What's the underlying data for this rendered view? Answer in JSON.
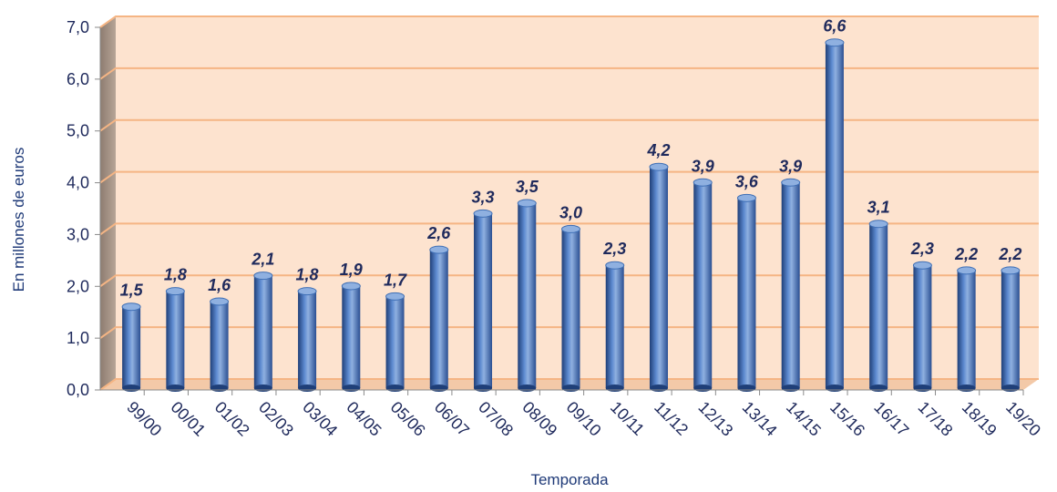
{
  "chart_data": {
    "type": "bar",
    "title": "",
    "xlabel": "Temporada",
    "ylabel": "En millones de euros",
    "ylim": [
      0,
      7
    ],
    "yticks": [
      "0,0",
      "1,0",
      "2,0",
      "3,0",
      "4,0",
      "5,0",
      "6,0",
      "7,0"
    ],
    "categories": [
      "99/00",
      "00/01",
      "01/02",
      "02/03",
      "03/04",
      "04/05",
      "05/06",
      "06/07",
      "07/08",
      "08/09",
      "09/10",
      "10/11",
      "11/12",
      "12/13",
      "13/14",
      "14/15",
      "15/16",
      "16/17",
      "17/18",
      "18/19",
      "19/20"
    ],
    "values": [
      1.5,
      1.8,
      1.6,
      2.1,
      1.8,
      1.9,
      1.7,
      2.6,
      3.3,
      3.5,
      3.0,
      2.3,
      4.2,
      3.9,
      3.6,
      3.9,
      6.6,
      3.1,
      2.3,
      2.2,
      2.2
    ],
    "value_labels": [
      "1,5",
      "1,8",
      "1,6",
      "2,1",
      "1,8",
      "1,9",
      "1,7",
      "2,6",
      "3,3",
      "3,5",
      "3,0",
      "2,3",
      "4,2",
      "3,9",
      "3,6",
      "3,9",
      "6,6",
      "3,1",
      "2,3",
      "2,2",
      "2,2"
    ],
    "grid": true,
    "legend": "none",
    "colors": {
      "bar": "#3f6fb5",
      "bar_dark": "#1f3f78",
      "bar_light": "#8fb0e0",
      "plot_bg": "#fde3cf",
      "grid": "#f5b584",
      "side_wall": "#a69486",
      "text": "#1f2a5c"
    }
  }
}
